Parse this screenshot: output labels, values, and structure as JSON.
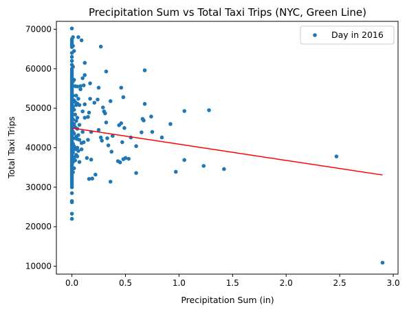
{
  "chart_data": {
    "type": "scatter",
    "title": "Precipitation Sum vs Total Taxi Trips (NYC, Green Line)",
    "xlabel": "Precipitation Sum (in)",
    "ylabel": "Total Taxi Trips",
    "xlim": [
      -0.145,
      3.045
    ],
    "ylim": [
      8000,
      72000
    ],
    "xticks": [
      0.0,
      0.5,
      1.0,
      1.5,
      2.0,
      2.5,
      3.0
    ],
    "xtick_labels": [
      "0.0",
      "0.5",
      "1.0",
      "1.5",
      "2.0",
      "2.5",
      "3.0"
    ],
    "yticks": [
      10000,
      20000,
      30000,
      40000,
      50000,
      60000,
      70000
    ],
    "ytick_labels": [
      "10000",
      "20000",
      "30000",
      "40000",
      "50000",
      "60000",
      "70000"
    ],
    "grid": false,
    "legend_position": "top-right",
    "series": [
      {
        "name": "Day in 2016",
        "kind": "scatter",
        "color": "#1f77b4",
        "points": [
          [
            0,
            70200
          ],
          [
            0,
            67500
          ],
          [
            0,
            67000
          ],
          [
            0,
            66500
          ],
          [
            0,
            66000
          ],
          [
            0,
            65500
          ],
          [
            0,
            64000
          ],
          [
            0,
            63000
          ],
          [
            0,
            62000
          ],
          [
            0,
            61000
          ],
          [
            0,
            60000
          ],
          [
            0,
            59500
          ],
          [
            0,
            59000
          ],
          [
            0,
            58600
          ],
          [
            0,
            58200
          ],
          [
            0,
            57800
          ],
          [
            0,
            57400
          ],
          [
            0,
            57000
          ],
          [
            0,
            56600
          ],
          [
            0,
            56200
          ],
          [
            0,
            55800
          ],
          [
            0,
            55400
          ],
          [
            0,
            55000
          ],
          [
            0,
            54600
          ],
          [
            0,
            54200
          ],
          [
            0,
            53800
          ],
          [
            0,
            53400
          ],
          [
            0,
            53000
          ],
          [
            0,
            52600
          ],
          [
            0,
            52200
          ],
          [
            0,
            51800
          ],
          [
            0,
            51400
          ],
          [
            0,
            51000
          ],
          [
            0,
            50600
          ],
          [
            0,
            50200
          ],
          [
            0,
            49800
          ],
          [
            0,
            49400
          ],
          [
            0,
            49000
          ],
          [
            0,
            48600
          ],
          [
            0,
            48200
          ],
          [
            0,
            47800
          ],
          [
            0,
            47400
          ],
          [
            0,
            47000
          ],
          [
            0,
            46600
          ],
          [
            0,
            46200
          ],
          [
            0,
            45800
          ],
          [
            0,
            45400
          ],
          [
            0,
            45000
          ],
          [
            0,
            44600
          ],
          [
            0,
            44200
          ],
          [
            0,
            43800
          ],
          [
            0,
            43400
          ],
          [
            0,
            43000
          ],
          [
            0,
            42600
          ],
          [
            0,
            42200
          ],
          [
            0,
            41800
          ],
          [
            0,
            41400
          ],
          [
            0,
            41000
          ],
          [
            0,
            40600
          ],
          [
            0,
            40200
          ],
          [
            0,
            39800
          ],
          [
            0,
            39400
          ],
          [
            0,
            39000
          ],
          [
            0,
            38600
          ],
          [
            0,
            38200
          ],
          [
            0,
            37800
          ],
          [
            0,
            37400
          ],
          [
            0,
            37000
          ],
          [
            0,
            36600
          ],
          [
            0,
            36200
          ],
          [
            0,
            35800
          ],
          [
            0,
            35400
          ],
          [
            0,
            35000
          ],
          [
            0,
            34500
          ],
          [
            0,
            34000
          ],
          [
            0,
            33500
          ],
          [
            0,
            33000
          ],
          [
            0,
            32500
          ],
          [
            0,
            32000
          ],
          [
            0,
            31500
          ],
          [
            0,
            31000
          ],
          [
            0,
            30500
          ],
          [
            0,
            30000
          ],
          [
            0,
            28500
          ],
          [
            0,
            26500
          ],
          [
            0,
            26200
          ],
          [
            0,
            23300
          ],
          [
            0,
            22000
          ],
          [
            0.01,
            68000
          ],
          [
            0.01,
            65800
          ],
          [
            0.01,
            60500
          ],
          [
            0.01,
            56800
          ],
          [
            0.01,
            53200
          ],
          [
            0.01,
            50400
          ],
          [
            0.01,
            47200
          ],
          [
            0.01,
            44000
          ],
          [
            0.01,
            41000
          ],
          [
            0.01,
            38800
          ],
          [
            0.01,
            36400
          ],
          [
            0.01,
            33800
          ],
          [
            0.02,
            64500
          ],
          [
            0.02,
            57200
          ],
          [
            0.02,
            52000
          ],
          [
            0.02,
            49600
          ],
          [
            0.02,
            46000
          ],
          [
            0.02,
            43600
          ],
          [
            0.02,
            40400
          ],
          [
            0.02,
            37600
          ],
          [
            0.02,
            34800
          ],
          [
            0.03,
            55600
          ],
          [
            0.03,
            51600
          ],
          [
            0.03,
            48400
          ],
          [
            0.03,
            45200
          ],
          [
            0.03,
            42400
          ],
          [
            0.03,
            39600
          ],
          [
            0.03,
            36800
          ],
          [
            0.04,
            53200
          ],
          [
            0.04,
            50800
          ],
          [
            0.04,
            46800
          ],
          [
            0.04,
            42800
          ],
          [
            0.04,
            38200
          ],
          [
            0.05,
            55500
          ],
          [
            0.05,
            51200
          ],
          [
            0.05,
            47600
          ],
          [
            0.05,
            44800
          ],
          [
            0.05,
            42200
          ],
          [
            0.05,
            40000
          ],
          [
            0.05,
            37800
          ],
          [
            0.06,
            68000
          ],
          [
            0.06,
            52400
          ],
          [
            0.06,
            43200
          ],
          [
            0.06,
            39200
          ],
          [
            0.07,
            50800
          ],
          [
            0.07,
            45800
          ],
          [
            0.07,
            42000
          ],
          [
            0.07,
            36400
          ],
          [
            0.08,
            55600
          ],
          [
            0.08,
            54800
          ],
          [
            0.09,
            67200
          ],
          [
            0.09,
            41200
          ],
          [
            0.09,
            39600
          ],
          [
            0.1,
            57600
          ],
          [
            0.1,
            49200
          ],
          [
            0.1,
            44000
          ],
          [
            0.11,
            55800
          ],
          [
            0.11,
            41400
          ],
          [
            0.12,
            61500
          ],
          [
            0.12,
            58400
          ],
          [
            0.12,
            51000
          ],
          [
            0.12,
            47600
          ],
          [
            0.14,
            37400
          ],
          [
            0.15,
            47800
          ],
          [
            0.15,
            42000
          ],
          [
            0.16,
            48900
          ],
          [
            0.16,
            32100
          ],
          [
            0.17,
            56300
          ],
          [
            0.17,
            52400
          ],
          [
            0.18,
            44000
          ],
          [
            0.18,
            37000
          ],
          [
            0.19,
            32200
          ],
          [
            0.21,
            51400
          ],
          [
            0.22,
            33200
          ],
          [
            0.24,
            52200
          ],
          [
            0.25,
            55200
          ],
          [
            0.25,
            44500
          ],
          [
            0.27,
            65600
          ],
          [
            0.27,
            42600
          ],
          [
            0.28,
            41800
          ],
          [
            0.29,
            50200
          ],
          [
            0.3,
            49200
          ],
          [
            0.31,
            48700
          ],
          [
            0.32,
            59300
          ],
          [
            0.32,
            46400
          ],
          [
            0.33,
            42400
          ],
          [
            0.34,
            40600
          ],
          [
            0.36,
            51800
          ],
          [
            0.36,
            31400
          ],
          [
            0.37,
            39000
          ],
          [
            0.38,
            43000
          ],
          [
            0.43,
            36600
          ],
          [
            0.44,
            45700
          ],
          [
            0.45,
            36300
          ],
          [
            0.46,
            55200
          ],
          [
            0.46,
            46200
          ],
          [
            0.47,
            41400
          ],
          [
            0.48,
            52800
          ],
          [
            0.48,
            37100
          ],
          [
            0.49,
            45000
          ],
          [
            0.5,
            37400
          ],
          [
            0.53,
            37200
          ],
          [
            0.55,
            42600
          ],
          [
            0.6,
            33600
          ],
          [
            0.6,
            40400
          ],
          [
            0.65,
            43900
          ],
          [
            0.66,
            47300
          ],
          [
            0.67,
            46900
          ],
          [
            0.68,
            51100
          ],
          [
            0.68,
            59600
          ],
          [
            0.74,
            47900
          ],
          [
            0.75,
            44000
          ],
          [
            0.84,
            42600
          ],
          [
            0.92,
            46000
          ],
          [
            0.97,
            33900
          ],
          [
            1.05,
            49300
          ],
          [
            1.05,
            36900
          ],
          [
            1.23,
            35400
          ],
          [
            1.28,
            49500
          ],
          [
            1.42,
            34600
          ],
          [
            2.47,
            37800
          ],
          [
            2.9,
            10900
          ]
        ]
      },
      {
        "name": "",
        "kind": "line",
        "color": "#ff0000",
        "points": [
          [
            0,
            45000
          ],
          [
            2.9,
            33100
          ]
        ]
      }
    ]
  }
}
